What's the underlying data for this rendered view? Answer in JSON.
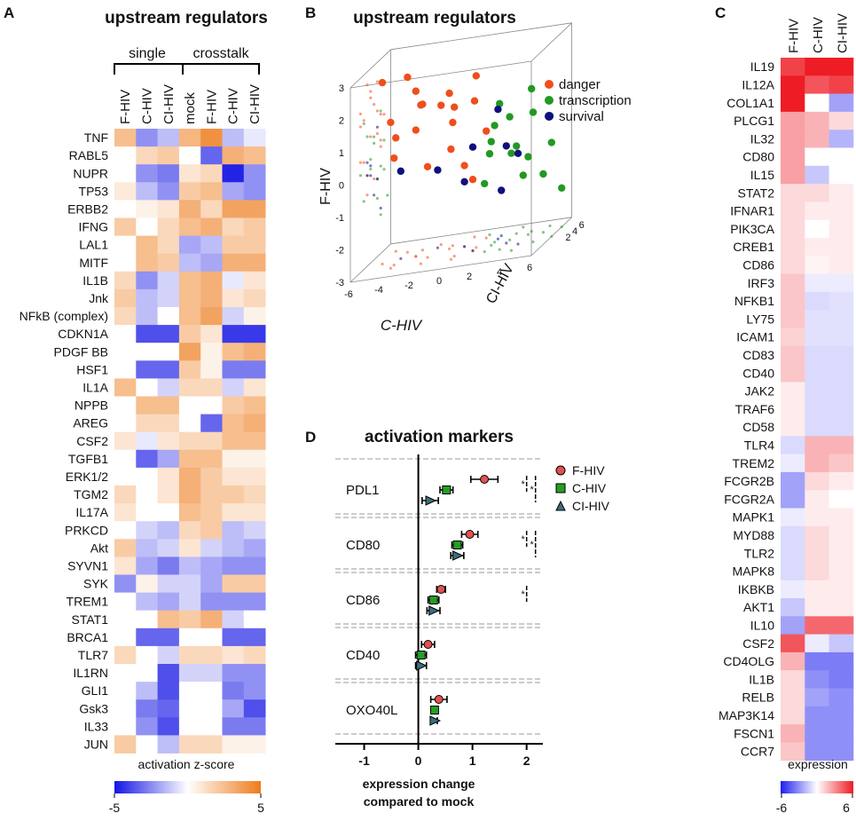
{
  "colors": {
    "negative": "#2323e6",
    "neutral": "#ffffff",
    "positive": "#ee7c1c",
    "expr_low": "#1f1ff0",
    "expr_high": "#ee1c24",
    "danger": "#f04e1c",
    "transcription": "#229922",
    "survival": "#10107e"
  },
  "panels": {
    "A": {
      "letter": "A",
      "title": "upstream regulators",
      "group_single": "single",
      "group_crosstalk": "crosstalk",
      "legend_title": "activation z-score",
      "legend_min": "-5",
      "legend_max": "5"
    },
    "B": {
      "letter": "B"
    },
    "C": {
      "letter": "C",
      "legend_title": "expression",
      "legend_min": "-6",
      "legend_max": "6"
    },
    "D": {
      "letter": "D"
    }
  },
  "chart_data": [
    {
      "id": "A",
      "type": "heatmap",
      "title": "upstream regulators",
      "colorbar_label": "activation z-score",
      "vmin": -5,
      "vmax": 5,
      "columns": [
        "F-HIV",
        "C-HIV",
        "CI-HIV",
        "mock",
        "F-HIV",
        "C-HIV",
        "CI-HIV"
      ],
      "column_groups": [
        {
          "label": "single",
          "span": 3
        },
        {
          "label": "crosstalk",
          "span": 4
        }
      ],
      "rows": [
        "TNF",
        "RABL5",
        "NUPR",
        "TP53",
        "ERBB2",
        "IFNG",
        "LAL1",
        "MITF",
        "IL1B",
        "Jnk",
        "NFkB (complex)",
        "CDKN1A",
        "PDGF BB",
        "HSF1",
        "IL1A",
        "NPPB",
        "AREG",
        "CSF2",
        "TGFB1",
        "ERK1/2",
        "TGM2",
        "IL17A",
        "PRKCD",
        "Akt",
        "SYVN1",
        "SYK",
        "TREM1",
        "STAT1",
        "BRCA1",
        "TLR7",
        "IL1RN",
        "GLI1",
        "Gsk3",
        "IL33",
        "JUN"
      ],
      "values": [
        [
          2.5,
          -2.5,
          -1.5,
          2.8,
          4.2,
          -1.5,
          -0.5
        ],
        [
          0,
          1.5,
          2,
          0,
          -3.5,
          3,
          2.5
        ],
        [
          0,
          -2.5,
          -3,
          1,
          1.5,
          -5,
          -2.5
        ],
        [
          0.8,
          -1.5,
          -2.5,
          2,
          2.5,
          -2,
          -2.5
        ],
        [
          0,
          0.5,
          1,
          3,
          1.5,
          3.5,
          3.5
        ],
        [
          2,
          0,
          1.5,
          2.5,
          3,
          1.5,
          2
        ],
        [
          0,
          2.5,
          1.5,
          -2,
          -1.5,
          2,
          2
        ],
        [
          0,
          2.5,
          2,
          -1.5,
          -2,
          3,
          3
        ],
        [
          1.5,
          -2.5,
          -1,
          2.5,
          3,
          -0.5,
          1
        ],
        [
          2,
          -1.5,
          -1,
          2.5,
          3,
          1,
          1.5
        ],
        [
          1.5,
          -1.5,
          0,
          2.5,
          3.5,
          -1,
          0.5
        ],
        [
          0,
          -4,
          -4,
          2,
          1,
          -4.5,
          -4.5
        ],
        [
          0,
          0,
          0,
          3.5,
          0.5,
          2.5,
          3
        ],
        [
          0,
          -3.5,
          -3.5,
          2,
          0.5,
          -3,
          -3
        ],
        [
          2.5,
          0,
          -1,
          1.5,
          1.5,
          -1,
          1
        ],
        [
          0,
          2.5,
          2.5,
          0,
          0,
          2,
          2.5
        ],
        [
          0,
          1.5,
          1.5,
          0,
          -3.5,
          2.5,
          3
        ],
        [
          1,
          -0.5,
          1,
          1.5,
          1.5,
          2.5,
          2.5
        ],
        [
          0,
          -3.5,
          -2,
          2.5,
          2.5,
          0.5,
          0.5
        ],
        [
          0,
          0,
          1,
          3,
          2,
          1,
          1
        ],
        [
          1.5,
          0,
          1,
          3,
          2,
          2,
          1.5
        ],
        [
          1,
          0,
          0,
          2.5,
          2,
          1,
          1
        ],
        [
          0,
          -1,
          -1.5,
          1.5,
          2,
          -1.5,
          -1
        ],
        [
          2,
          -1.5,
          -1,
          1,
          -1,
          -1.5,
          -2
        ],
        [
          1,
          -2,
          -3,
          -1.5,
          -2,
          -2.5,
          -2.5
        ],
        [
          -2.5,
          0.5,
          -1,
          -1,
          -2,
          2,
          2
        ],
        [
          0,
          -1.5,
          -2,
          -1,
          -2.5,
          -2.5,
          -2.5
        ],
        [
          0,
          0,
          2.5,
          2,
          3,
          -1,
          0
        ],
        [
          0,
          -3.5,
          -3.5,
          0,
          0,
          -3.5,
          -3.5
        ],
        [
          1.5,
          0,
          -1,
          1.5,
          1.5,
          1,
          1.5
        ],
        [
          0,
          0,
          -4,
          -1,
          -1,
          -2.5,
          -2.5
        ],
        [
          0,
          -1.5,
          -4,
          0,
          0,
          -3,
          -2.5
        ],
        [
          0,
          -3,
          -3.5,
          0,
          0,
          -2,
          -4
        ],
        [
          0,
          -2.5,
          -4,
          0,
          0,
          -3,
          -3
        ],
        [
          2,
          0,
          -1.5,
          1.5,
          1.5,
          0.5,
          0.5
        ]
      ]
    },
    {
      "id": "B",
      "type": "scatter",
      "title": "upstream regulators",
      "axes": {
        "x": "C-HIV",
        "y": "CI-HIV",
        "z": "F-HIV"
      },
      "xlim": [
        -6,
        6
      ],
      "ylim": [
        -6,
        6
      ],
      "zlim": [
        -3,
        3
      ],
      "x_ticks": [
        "-6",
        "-4",
        "-2",
        "0",
        "2",
        "4",
        "6"
      ],
      "y_ticks": [
        "2",
        "4",
        "6"
      ],
      "z_ticks": [
        "-3",
        "-2",
        "-1",
        "0",
        "1",
        "2",
        "3"
      ],
      "legend": [
        "danger",
        "transcription",
        "survival"
      ],
      "series": [
        {
          "name": "danger",
          "points": [
            [
              -5,
              -1,
              2.6
            ],
            [
              -4,
              2,
              2.4
            ],
            [
              -3,
              0,
              2.1
            ],
            [
              -2,
              -3,
              1.9
            ],
            [
              -1,
              1,
              1.8
            ],
            [
              0,
              -2,
              1.6
            ],
            [
              -4,
              -3,
              1.5
            ],
            [
              -3,
              2,
              1.5
            ],
            [
              -2,
              3,
              1.3
            ],
            [
              1,
              0,
              2.3
            ],
            [
              -5,
              3,
              0.5
            ],
            [
              -4,
              -2,
              0.3
            ],
            [
              -1,
              2,
              0.8
            ],
            [
              0,
              4,
              1.2
            ],
            [
              0,
              -3,
              0.4
            ],
            [
              1,
              3,
              0.3
            ],
            [
              -2,
              -1,
              -0.2
            ],
            [
              0,
              1,
              -0.5
            ],
            [
              1,
              -1,
              -0.8
            ],
            [
              -3,
              0,
              0.9
            ]
          ]
        },
        {
          "name": "transcription",
          "points": [
            [
              3,
              -2,
              1.5
            ],
            [
              4,
              3,
              1.4
            ],
            [
              5,
              -1,
              1.0
            ],
            [
              3,
              1,
              0.8
            ],
            [
              5,
              4,
              0.4
            ],
            [
              2,
              0,
              0.2
            ],
            [
              4,
              -3,
              0.0
            ],
            [
              3,
              3,
              -0.3
            ],
            [
              6,
              0,
              -0.1
            ],
            [
              4,
              2,
              -0.6
            ],
            [
              1,
              4,
              -0.5
            ],
            [
              2,
              -2,
              -0.9
            ],
            [
              5,
              2,
              -1.2
            ],
            [
              3,
              5,
              -1.4
            ],
            [
              6,
              3,
              -1.8
            ],
            [
              2,
              1,
              0.6
            ]
          ]
        },
        {
          "name": "survival",
          "points": [
            [
              2,
              2,
              1.0
            ],
            [
              1,
              -1,
              0.2
            ],
            [
              3,
              0,
              0.0
            ],
            [
              -4,
              0,
              -0.3
            ],
            [
              -2,
              2,
              -0.6
            ],
            [
              4,
              -1,
              -0.2
            ],
            [
              2,
              3,
              -1.6
            ],
            [
              0,
              1,
              -1.0
            ]
          ]
        }
      ]
    },
    {
      "id": "C",
      "type": "heatmap",
      "colorbar_label": "expression",
      "vmin": -6,
      "vmax": 6,
      "columns": [
        "F-HIV",
        "C-HIV",
        "CI-HIV"
      ],
      "rows": [
        "IL19",
        "IL12A",
        "COL1A1",
        "PLCG1",
        "IL32",
        "CD80",
        "IL15",
        "STAT2",
        "IFNAR1",
        "PIK3CA",
        "CREB1",
        "CD86",
        "IRF3",
        "NFKB1",
        "LY75",
        "ICAM1",
        "CD83",
        "CD40",
        "JAK2",
        "TRAF6",
        "CD58",
        "TLR4",
        "TREM2",
        "FCGR2B",
        "FCGR2A",
        "MAPK1",
        "MYD88",
        "TLR2",
        "MAPK8",
        "IKBKB",
        "AKT1",
        "IL10",
        "CSF2",
        "CD4OLG",
        "IL1B",
        "RELB",
        "MAP3K14",
        "FSCN1",
        "CCR7"
      ],
      "values": [
        [
          5,
          6,
          6
        ],
        [
          6,
          4.5,
          5
        ],
        [
          6,
          0,
          -2.5
        ],
        [
          2.5,
          2,
          1
        ],
        [
          2.5,
          2,
          -2
        ],
        [
          2.5,
          0,
          0
        ],
        [
          2.5,
          -1.5,
          0
        ],
        [
          1,
          1,
          0.5
        ],
        [
          1,
          0.5,
          0.5
        ],
        [
          1,
          0,
          0.5
        ],
        [
          1,
          0.5,
          0.5
        ],
        [
          1,
          0.3,
          0.5
        ],
        [
          1.5,
          -0.5,
          -0.5
        ],
        [
          1.5,
          -1,
          -0.8
        ],
        [
          1.5,
          -0.8,
          -0.8
        ],
        [
          1.2,
          -0.8,
          -0.8
        ],
        [
          1.5,
          -1,
          -1
        ],
        [
          1.5,
          -1,
          -1
        ],
        [
          0.5,
          -1,
          -1
        ],
        [
          0.5,
          -1,
          -1
        ],
        [
          0.5,
          -1,
          -1
        ],
        [
          -1,
          2,
          2
        ],
        [
          -0.5,
          2,
          1.5
        ],
        [
          -2.5,
          1,
          0.5
        ],
        [
          -2.5,
          0.5,
          0
        ],
        [
          -0.5,
          0.5,
          0.5
        ],
        [
          -1,
          1,
          0.5
        ],
        [
          -1,
          1,
          0.5
        ],
        [
          -1,
          1,
          0.5
        ],
        [
          -0.5,
          0.5,
          0.5
        ],
        [
          -1.5,
          0.5,
          0.5
        ],
        [
          -2.5,
          4,
          4
        ],
        [
          4.5,
          -0.5,
          -1.5
        ],
        [
          2,
          -3.5,
          -3.5
        ],
        [
          1,
          -3,
          -3.5
        ],
        [
          1,
          -2.5,
          -3
        ],
        [
          1,
          -3,
          -3
        ],
        [
          2,
          -3,
          -3
        ],
        [
          1.5,
          -3,
          -3
        ]
      ]
    },
    {
      "id": "D",
      "type": "scatter",
      "title": "activation markers",
      "xlabel": "expression change compared to mock",
      "xlim": [
        -1.5,
        2.3
      ],
      "x_ticks": [
        "-1",
        "0",
        "1",
        "2"
      ],
      "categories": [
        "PDL1",
        "CD80",
        "CD86",
        "CD40",
        "OXO40L"
      ],
      "series": [
        {
          "name": "F-HIV",
          "marker": "circle",
          "color": "#e35050",
          "values": [
            1.22,
            0.95,
            0.42,
            0.18,
            0.38
          ],
          "errors": [
            0.25,
            0.15,
            0.08,
            0.12,
            0.15
          ]
        },
        {
          "name": "C-HIV",
          "marker": "square",
          "color": "#22a022",
          "values": [
            0.52,
            0.72,
            0.28,
            0.05,
            0.3
          ],
          "errors": [
            0.12,
            0.1,
            0.1,
            0.1,
            0.05
          ]
        },
        {
          "name": "CI-HIV",
          "marker": "triangle",
          "color": "#3c6e7e",
          "values": [
            0.22,
            0.72,
            0.28,
            0.05,
            0.3
          ],
          "errors": [
            0.15,
            0.12,
            0.12,
            0.1,
            0.05
          ]
        }
      ],
      "significance": [
        {
          "category": "PDL1",
          "marks": [
            "*",
            "*"
          ]
        },
        {
          "category": "CD80",
          "marks": [
            "*",
            "*"
          ]
        },
        {
          "category": "CD86",
          "marks": [
            "*"
          ]
        }
      ]
    }
  ]
}
